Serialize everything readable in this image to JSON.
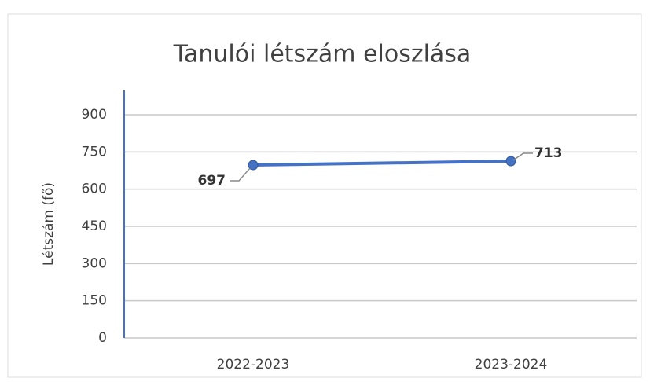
{
  "chart_data": {
    "type": "line",
    "title": "Tanulói létszám eloszlása",
    "ylabel": "Létszám (fő)",
    "categories": [
      "2022-2023",
      "2023-2024"
    ],
    "values": [
      697,
      713
    ],
    "color": "#4472c4",
    "ylim": [
      0,
      900
    ],
    "yticks": [
      0,
      150,
      300,
      450,
      600,
      750,
      900
    ],
    "grid": true
  }
}
